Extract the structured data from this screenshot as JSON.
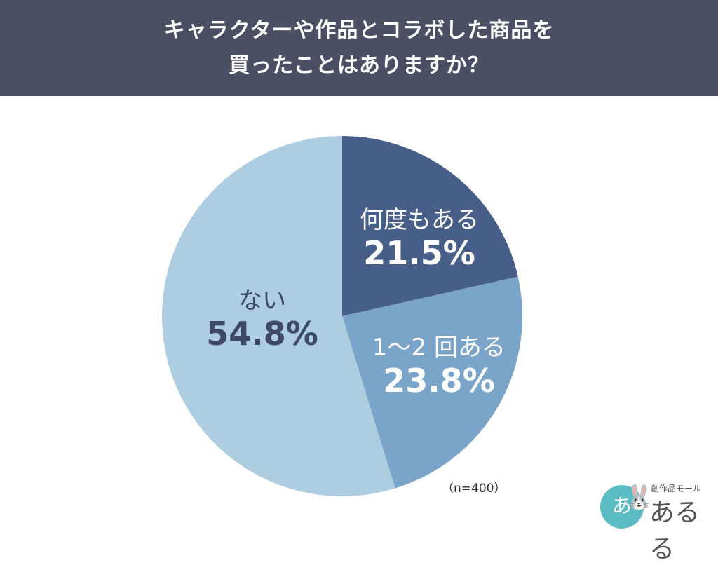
{
  "header": {
    "title_line1": "キャラクターや作品とコラボした商品を",
    "title_line2": "買ったことはありますか？",
    "background": "#4a4f63"
  },
  "chart_data": {
    "type": "pie",
    "title": "キャラクターや作品とコラボした商品を買ったことはありますか？",
    "categories": [
      "何度もある",
      "1～2回ある",
      "ない"
    ],
    "values": [
      21.5,
      23.8,
      54.8
    ],
    "value_labels": [
      "21.5%",
      "23.8%",
      "54.8%"
    ],
    "colors": [
      "#475f88",
      "#7aa4c8",
      "#aecde0"
    ],
    "start_angle": "12 o'clock, clockwise",
    "sample_note": "（n=400）"
  },
  "slices": [
    {
      "name": "何度もある",
      "pct": "21.5%",
      "color": "#475f88",
      "text_color": "#ffffff"
    },
    {
      "name": "1～2 回ある",
      "pct": "23.8%",
      "color": "#7aa4c8",
      "text_color": "#ffffff"
    },
    {
      "name": "ない",
      "pct": "54.8%",
      "color": "#aecde0",
      "text_color": "#3e4a63"
    }
  ],
  "note": "（n=400）",
  "logo": {
    "subtitle": "創作品モール",
    "name": "あるる",
    "mark": "あ",
    "mascot_icon": "rabbit-icon"
  }
}
